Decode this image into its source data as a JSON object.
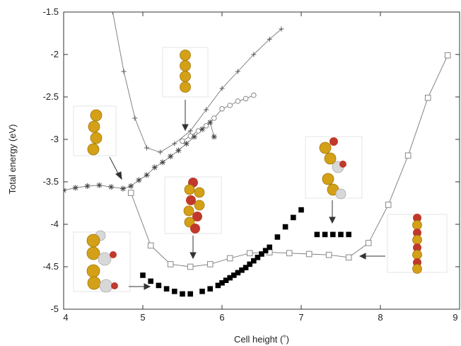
{
  "chart_data": {
    "type": "scatter",
    "title": "",
    "xlabel": "Cell height (˚)",
    "ylabel": "Total energy (eV)",
    "xlim": [
      4,
      9
    ],
    "ylim": [
      -5,
      -1.5
    ],
    "xticks": [
      4,
      5,
      6,
      7,
      8,
      9
    ],
    "yticks": [
      -1.5,
      -2,
      -2.5,
      -3,
      -3.5,
      -4,
      -4.5,
      -5
    ],
    "grid": false,
    "legend": "none",
    "colors": {
      "line": "#777777",
      "black": "#000000",
      "open": "#888888",
      "axis": "#333333"
    },
    "series": [
      {
        "marker": "plus",
        "x": [
          4.62,
          4.76,
          4.9,
          5.05,
          5.22,
          5.4,
          5.6,
          5.8,
          6.0,
          6.2,
          6.4,
          6.6,
          6.75
        ],
        "y": [
          -1.5,
          -2.2,
          -2.75,
          -3.1,
          -3.15,
          -3.05,
          -2.9,
          -2.65,
          -2.4,
          -2.2,
          -2.0,
          -1.82,
          -1.7
        ]
      },
      {
        "marker": "circle",
        "x": [
          5.5,
          5.6,
          5.7,
          5.8,
          5.9,
          6.0,
          6.1,
          6.2,
          6.3,
          6.4
        ],
        "y": [
          -3.02,
          -2.96,
          -2.9,
          -2.84,
          -2.75,
          -2.64,
          -2.6,
          -2.55,
          -2.52,
          -2.48
        ]
      },
      {
        "marker": "star",
        "x": [
          4.0,
          4.15,
          4.3,
          4.45,
          4.6,
          4.75,
          4.85,
          4.95,
          5.05,
          5.15,
          5.25,
          5.35,
          5.45,
          5.55,
          5.65,
          5.75,
          5.85,
          5.9
        ],
        "y": [
          -3.6,
          -3.57,
          -3.55,
          -3.54,
          -3.56,
          -3.58,
          -3.55,
          -3.48,
          -3.42,
          -3.33,
          -3.27,
          -3.2,
          -3.13,
          -3.05,
          -2.97,
          -2.88,
          -2.8,
          -2.97
        ]
      },
      {
        "marker": "open-square",
        "x": [
          4.85,
          5.1,
          5.35,
          5.6,
          5.85,
          6.1,
          6.35,
          6.6,
          6.85,
          7.1,
          7.35,
          7.6,
          7.85,
          8.1,
          8.35,
          8.6,
          8.85
        ],
        "y": [
          -3.63,
          -4.25,
          -4.47,
          -4.5,
          -4.47,
          -4.4,
          -4.34,
          -4.33,
          -4.34,
          -4.35,
          -4.36,
          -4.39,
          -4.22,
          -3.77,
          -3.19,
          -2.51,
          -2.01
        ]
      },
      {
        "marker": "filled-square",
        "x": [
          5.0,
          5.1,
          5.2,
          5.3,
          5.4,
          5.5,
          5.6,
          5.75,
          5.85,
          5.95,
          6.0,
          6.05,
          6.1,
          6.15,
          6.2,
          6.25,
          6.3,
          6.35,
          6.4,
          6.45,
          6.5,
          6.55,
          6.6,
          6.7,
          6.8,
          6.9,
          7.0,
          7.2,
          7.3,
          7.4,
          7.5,
          7.6
        ],
        "y": [
          -4.6,
          -4.67,
          -4.72,
          -4.76,
          -4.79,
          -4.82,
          -4.82,
          -4.79,
          -4.76,
          -4.72,
          -4.69,
          -4.66,
          -4.63,
          -4.6,
          -4.57,
          -4.54,
          -4.51,
          -4.47,
          -4.43,
          -4.39,
          -4.35,
          -4.31,
          -4.27,
          -4.15,
          -4.03,
          -3.92,
          -3.83,
          -4.12,
          -4.12,
          -4.12,
          -4.12,
          -4.12
        ]
      }
    ]
  }
}
